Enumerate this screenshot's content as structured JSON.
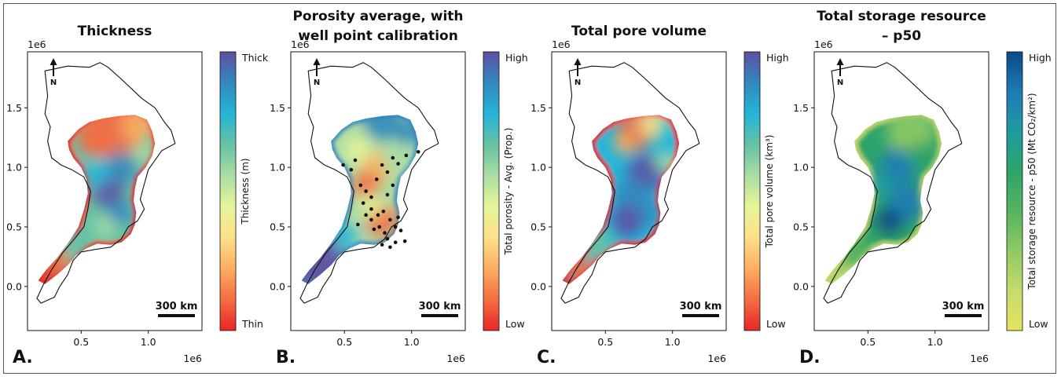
{
  "figure": {
    "panels": [
      {
        "letter": "A.",
        "title_lines": [
          "Thickness"
        ],
        "colorbar_label": "Thickness (m)",
        "colorbar_top": "Thick",
        "colorbar_bottom": "Thin",
        "colormap": "spectral",
        "wells": false
      },
      {
        "letter": "B.",
        "title_lines": [
          "Porosity average, with",
          "well point calibration"
        ],
        "colorbar_label": "Total porosity - Avg. (Prop.)",
        "colorbar_top": "High",
        "colorbar_bottom": "Low",
        "colormap": "spectral",
        "wells": true
      },
      {
        "letter": "C.",
        "title_lines": [
          "Total pore volume"
        ],
        "colorbar_label": "Total pore volume (km³)",
        "colorbar_top": "High",
        "colorbar_bottom": "Low",
        "colormap": "spectral",
        "wells": false
      },
      {
        "letter": "D.",
        "title_lines": [
          "Total storage resource",
          "– p50"
        ],
        "colorbar_label": "Total storage resource - p50 (Mt CO₂/km²)",
        "colorbar_top": "High",
        "colorbar_bottom": "Low",
        "colormap": "yellow-green-blue",
        "wells": false
      }
    ],
    "x_ticks": [
      "0.5",
      "1.0"
    ],
    "y_ticks": [
      "0.0",
      "0.5",
      "1.0",
      "1.5"
    ],
    "offset_label": "1e6",
    "north_label": "N",
    "scalebar_label": "300 km",
    "colors": {
      "spectral": [
        "#5e4fa2",
        "#3288bd",
        "#24b5d8",
        "#66c2a5",
        "#abdda4",
        "#e6f598",
        "#fee08b",
        "#fdae61",
        "#f46d43",
        "#e8262a"
      ],
      "ylgnbu": [
        "#0b4a87",
        "#1d7bb5",
        "#1e9ba0",
        "#2da46a",
        "#55b460",
        "#8fc964",
        "#c4dc6c",
        "#e8e35e"
      ]
    }
  },
  "chart_data": [
    {
      "type": "heatmap",
      "title": "Thickness",
      "colorbar": {
        "label": "Thickness (m)",
        "max_label": "Thick",
        "min_label": "Thin"
      },
      "x_ticks": [
        0.5,
        1.0
      ],
      "y_ticks": [
        0.0,
        0.5,
        1.0,
        1.5
      ],
      "axis_scale": "1e6",
      "xlim": [
        0.1,
        1.4
      ],
      "ylim": [
        -0.37,
        1.97
      ]
    },
    {
      "type": "heatmap",
      "title": "Porosity average, with well point calibration",
      "colorbar": {
        "label": "Total porosity - Avg. (Prop.)",
        "max_label": "High",
        "min_label": "Low"
      },
      "x_ticks": [
        0.5,
        1.0
      ],
      "y_ticks": [
        0.0,
        0.5,
        1.0,
        1.5
      ],
      "axis_scale": "1e6",
      "xlim": [
        0.1,
        1.4
      ],
      "ylim": [
        -0.37,
        1.97
      ],
      "well_points": [
        [
          0.49,
          1.02
        ],
        [
          0.55,
          0.98
        ],
        [
          0.58,
          1.06
        ],
        [
          0.62,
          0.85
        ],
        [
          0.66,
          0.8
        ],
        [
          0.7,
          0.75
        ],
        [
          0.74,
          0.9
        ],
        [
          0.78,
          1.02
        ],
        [
          0.82,
          0.96
        ],
        [
          0.86,
          1.08
        ],
        [
          0.9,
          1.03
        ],
        [
          0.96,
          1.1
        ],
        [
          1.05,
          1.13
        ],
        [
          0.64,
          0.7
        ],
        [
          0.7,
          0.65
        ],
        [
          0.75,
          0.6
        ],
        [
          0.79,
          0.63
        ],
        [
          0.84,
          0.56
        ],
        [
          0.88,
          0.5
        ],
        [
          0.92,
          0.47
        ],
        [
          0.7,
          0.56
        ],
        [
          0.76,
          0.5
        ],
        [
          0.8,
          0.45
        ],
        [
          0.82,
          0.4
        ],
        [
          0.78,
          0.35
        ],
        [
          0.84,
          0.33
        ],
        [
          0.88,
          0.37
        ],
        [
          0.72,
          0.48
        ],
        [
          0.66,
          0.6
        ],
        [
          0.6,
          0.52
        ],
        [
          0.82,
          0.77
        ],
        [
          0.9,
          0.58
        ],
        [
          0.95,
          0.38
        ],
        [
          0.86,
          0.85
        ]
      ]
    },
    {
      "type": "heatmap",
      "title": "Total pore volume",
      "colorbar": {
        "label": "Total pore volume (km³)",
        "max_label": "High",
        "min_label": "Low"
      },
      "x_ticks": [
        0.5,
        1.0
      ],
      "y_ticks": [
        0.0,
        0.5,
        1.0,
        1.5
      ],
      "axis_scale": "1e6",
      "xlim": [
        0.1,
        1.4
      ],
      "ylim": [
        -0.37,
        1.97
      ]
    },
    {
      "type": "heatmap",
      "title": "Total storage resource – p50",
      "colorbar": {
        "label": "Total storage resource - p50 (Mt CO₂/km²)",
        "max_label": "High",
        "min_label": "Low"
      },
      "x_ticks": [
        0.5,
        1.0
      ],
      "y_ticks": [
        0.0,
        0.5,
        1.0,
        1.5
      ],
      "axis_scale": "1e6",
      "xlim": [
        0.1,
        1.4
      ],
      "ylim": [
        -0.37,
        1.97
      ]
    }
  ]
}
